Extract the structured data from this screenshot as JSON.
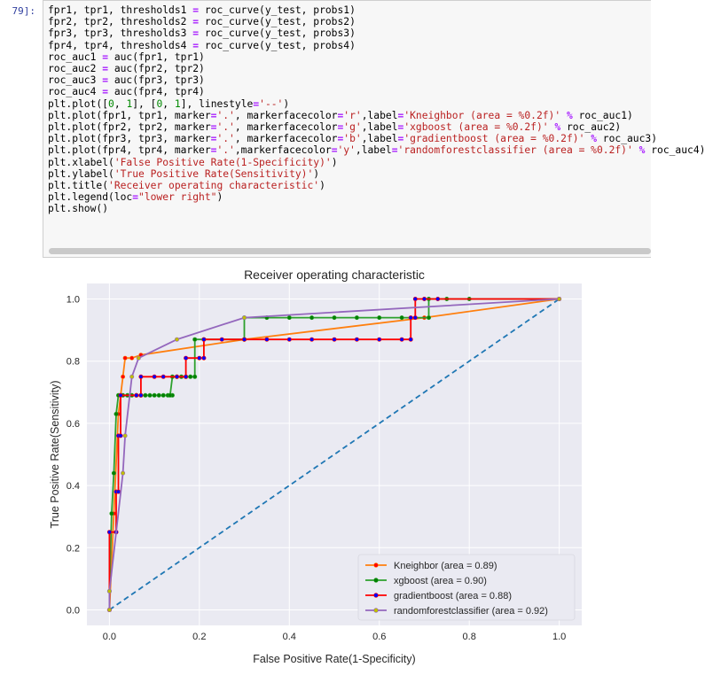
{
  "cell": {
    "prompt": "79]:",
    "code_lines": [
      "fpr1, tpr1, thresholds1 = roc_curve(y_test, probs1)",
      "fpr2, tpr2, thresholds2 = roc_curve(y_test, probs2)",
      "fpr3, tpr3, thresholds3 = roc_curve(y_test, probs3)",
      "fpr4, tpr4, thresholds4 = roc_curve(y_test, probs4)",
      "roc_auc1 = auc(fpr1, tpr1)",
      "roc_auc2 = auc(fpr2, tpr2)",
      "roc_auc3 = auc(fpr3, tpr3)",
      "roc_auc4 = auc(fpr4, tpr4)",
      "plt.plot([0, 1], [0, 1], linestyle='--')",
      "plt.plot(fpr1, tpr1, marker='.', markerfacecolor='r',label='Kneighbor (area = %0.2f)' % roc_auc1)",
      "plt.plot(fpr2, tpr2, marker='.', markerfacecolor='g',label='xgboost (area = %0.2f)' % roc_auc2)",
      "plt.plot(fpr3, tpr3, marker='.', markerfacecolor='b',label='gradientboost (area = %0.2f)' % roc_auc3)",
      "plt.plot(fpr4, tpr4, marker='.',markerfacecolor='y',label='randomforestclassifier (area = %0.2f)' % roc_auc4)",
      "plt.xlabel('False Positive Rate(1-Specificity)')",
      "plt.ylabel('True Positive Rate(Sensitivity)')",
      "plt.title('Receiver operating characteristic')",
      "plt.legend(loc=\"lower right\")",
      "plt.show()"
    ]
  },
  "chart_data": {
    "type": "line",
    "title": "Receiver operating characteristic",
    "xlabel": "False Positive Rate(1-Specificity)",
    "ylabel": "True Positive Rate(Sensitivity)",
    "xlim": [
      -0.05,
      1.05
    ],
    "ylim": [
      -0.05,
      1.05
    ],
    "xticks": [
      0.0,
      0.2,
      0.4,
      0.6,
      0.8,
      1.0
    ],
    "yticks": [
      0.0,
      0.2,
      0.4,
      0.6,
      0.8,
      1.0
    ],
    "xtick_labels": [
      "0.0",
      "0.2",
      "0.4",
      "0.6",
      "0.8",
      "1.0"
    ],
    "ytick_labels": [
      "0.0",
      "0.2",
      "0.4",
      "0.6",
      "0.8",
      "1.0"
    ],
    "grid": true,
    "legend_position": "lower-right",
    "diagonal": {
      "x": [
        0,
        1
      ],
      "y": [
        0,
        1
      ],
      "color": "#1f77b4",
      "style": "dashed"
    },
    "series": [
      {
        "name": "Kneighbor (area = 0.89)",
        "line_color": "#ff7f0e",
        "marker_color": "#ff0000",
        "points": [
          [
            0,
            0
          ],
          [
            0.01,
            0.31
          ],
          [
            0.02,
            0.63
          ],
          [
            0.03,
            0.75
          ],
          [
            0.035,
            0.81
          ],
          [
            0.05,
            0.81
          ],
          [
            0.07,
            0.82
          ],
          [
            0.3,
            0.87
          ],
          [
            0.7,
            0.94
          ],
          [
            1.0,
            1.0
          ]
        ]
      },
      {
        "name": "xgboost (area = 0.90)",
        "line_color": "#2ca02c",
        "marker_color": "#008000",
        "points": [
          [
            0,
            0
          ],
          [
            0,
            0.06
          ],
          [
            0.005,
            0.31
          ],
          [
            0.01,
            0.44
          ],
          [
            0.015,
            0.63
          ],
          [
            0.02,
            0.69
          ],
          [
            0.03,
            0.69
          ],
          [
            0.04,
            0.69
          ],
          [
            0.05,
            0.69
          ],
          [
            0.06,
            0.69
          ],
          [
            0.07,
            0.69
          ],
          [
            0.08,
            0.69
          ],
          [
            0.09,
            0.69
          ],
          [
            0.1,
            0.69
          ],
          [
            0.11,
            0.69
          ],
          [
            0.12,
            0.69
          ],
          [
            0.13,
            0.69
          ],
          [
            0.14,
            0.69
          ],
          [
            0.135,
            0.69
          ],
          [
            0.14,
            0.75
          ],
          [
            0.15,
            0.75
          ],
          [
            0.16,
            0.75
          ],
          [
            0.17,
            0.75
          ],
          [
            0.18,
            0.75
          ],
          [
            0.19,
            0.75
          ],
          [
            0.19,
            0.87
          ],
          [
            0.21,
            0.87
          ],
          [
            0.3,
            0.87
          ],
          [
            0.3,
            0.94
          ],
          [
            0.35,
            0.94
          ],
          [
            0.4,
            0.94
          ],
          [
            0.45,
            0.94
          ],
          [
            0.5,
            0.94
          ],
          [
            0.55,
            0.94
          ],
          [
            0.6,
            0.94
          ],
          [
            0.65,
            0.94
          ],
          [
            0.71,
            0.94
          ],
          [
            0.71,
            1.0
          ],
          [
            0.75,
            1.0
          ],
          [
            0.8,
            1.0
          ],
          [
            1.0,
            1.0
          ]
        ]
      },
      {
        "name": "gradientboost (area = 0.88)",
        "line_color": "#ff0000",
        "marker_color": "#0000ff",
        "points": [
          [
            0,
            0
          ],
          [
            0,
            0.25
          ],
          [
            0.015,
            0.25
          ],
          [
            0.015,
            0.38
          ],
          [
            0.02,
            0.38
          ],
          [
            0.02,
            0.56
          ],
          [
            0.025,
            0.56
          ],
          [
            0.025,
            0.69
          ],
          [
            0.06,
            0.69
          ],
          [
            0.07,
            0.69
          ],
          [
            0.07,
            0.75
          ],
          [
            0.1,
            0.75
          ],
          [
            0.12,
            0.75
          ],
          [
            0.15,
            0.75
          ],
          [
            0.17,
            0.75
          ],
          [
            0.17,
            0.81
          ],
          [
            0.2,
            0.81
          ],
          [
            0.21,
            0.81
          ],
          [
            0.21,
            0.87
          ],
          [
            0.25,
            0.87
          ],
          [
            0.3,
            0.87
          ],
          [
            0.35,
            0.87
          ],
          [
            0.4,
            0.87
          ],
          [
            0.45,
            0.87
          ],
          [
            0.5,
            0.87
          ],
          [
            0.55,
            0.87
          ],
          [
            0.6,
            0.87
          ],
          [
            0.65,
            0.87
          ],
          [
            0.67,
            0.87
          ],
          [
            0.67,
            0.94
          ],
          [
            0.68,
            0.94
          ],
          [
            0.68,
            1.0
          ],
          [
            0.7,
            1.0
          ],
          [
            0.73,
            1.0
          ],
          [
            1.0,
            1.0
          ]
        ]
      },
      {
        "name": "randomforestclassifier (area = 0.92)",
        "line_color": "#9467bd",
        "marker_color": "#bfbf00",
        "points": [
          [
            0,
            0
          ],
          [
            0,
            0.06
          ],
          [
            0.03,
            0.44
          ],
          [
            0.035,
            0.56
          ],
          [
            0.05,
            0.75
          ],
          [
            0.065,
            0.81
          ],
          [
            0.15,
            0.87
          ],
          [
            0.3,
            0.94
          ],
          [
            1.0,
            1.0
          ]
        ]
      }
    ]
  }
}
